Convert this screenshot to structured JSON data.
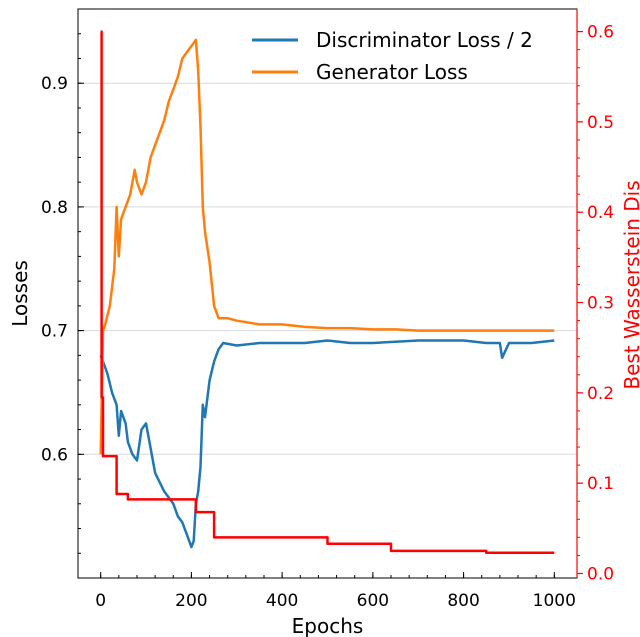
{
  "chart_data": {
    "type": "line",
    "title": "",
    "xlabel": "Epochs",
    "ylabel": "Losses",
    "ylabel_right": "Best Wasserstein Dis",
    "xlim": [
      -50,
      1050
    ],
    "ylim": [
      0.5,
      0.96
    ],
    "ylim_right": [
      -0.005,
      0.625
    ],
    "x_ticks": [
      "0",
      "200",
      "400",
      "600",
      "800",
      "1000"
    ],
    "y_ticks": [
      "0.6",
      "0.7",
      "0.8",
      "0.9"
    ],
    "y_ticks_right": [
      "0.0",
      "0.1",
      "0.2",
      "0.3",
      "0.4",
      "0.5",
      "0.6"
    ],
    "grid": "horizontal",
    "legend_position": "top-right",
    "colors": {
      "discriminator": "#1f77b4",
      "generator": "#ff7f0e",
      "wasserstein": "#ff0000"
    },
    "series": [
      {
        "name": "Discriminator Loss / 2",
        "axis": "left",
        "x": [
          0,
          5,
          15,
          25,
          35,
          40,
          45,
          55,
          60,
          70,
          80,
          90,
          100,
          110,
          120,
          140,
          160,
          170,
          180,
          190,
          200,
          205,
          210,
          215,
          220,
          225,
          230,
          240,
          250,
          260,
          270,
          300,
          350,
          400,
          450,
          500,
          550,
          600,
          650,
          700,
          750,
          800,
          850,
          880,
          885,
          900,
          950,
          1000
        ],
        "y": [
          0.68,
          0.675,
          0.665,
          0.65,
          0.64,
          0.615,
          0.635,
          0.625,
          0.61,
          0.6,
          0.595,
          0.62,
          0.625,
          0.605,
          0.585,
          0.57,
          0.56,
          0.55,
          0.545,
          0.535,
          0.525,
          0.53,
          0.56,
          0.57,
          0.59,
          0.64,
          0.63,
          0.66,
          0.675,
          0.685,
          0.69,
          0.688,
          0.69,
          0.69,
          0.69,
          0.692,
          0.69,
          0.69,
          0.691,
          0.692,
          0.692,
          0.692,
          0.69,
          0.69,
          0.678,
          0.69,
          0.69,
          0.692
        ]
      },
      {
        "name": "Generator Loss",
        "axis": "left",
        "x": [
          0,
          5,
          10,
          20,
          30,
          35,
          40,
          45,
          55,
          65,
          75,
          80,
          90,
          100,
          110,
          120,
          130,
          140,
          150,
          160,
          170,
          180,
          190,
          200,
          210,
          215,
          220,
          225,
          230,
          240,
          250,
          260,
          280,
          300,
          350,
          400,
          450,
          500,
          550,
          600,
          650,
          700,
          750,
          800,
          850,
          900,
          950,
          1000
        ],
        "y": [
          0.6,
          0.7,
          0.705,
          0.72,
          0.75,
          0.8,
          0.76,
          0.79,
          0.8,
          0.81,
          0.83,
          0.82,
          0.81,
          0.82,
          0.84,
          0.85,
          0.86,
          0.87,
          0.885,
          0.895,
          0.905,
          0.92,
          0.925,
          0.93,
          0.935,
          0.91,
          0.865,
          0.8,
          0.78,
          0.755,
          0.72,
          0.71,
          0.71,
          0.708,
          0.705,
          0.705,
          0.703,
          0.702,
          0.702,
          0.701,
          0.701,
          0.7,
          0.7,
          0.7,
          0.7,
          0.7,
          0.7,
          0.7
        ]
      },
      {
        "name": "Best Wasserstein Distance",
        "axis": "right",
        "step": true,
        "x": [
          0,
          2,
          5,
          15,
          35,
          60,
          140,
          210,
          250,
          500,
          640,
          850,
          1000
        ],
        "y": [
          0.6,
          0.195,
          0.13,
          0.13,
          0.088,
          0.082,
          0.082,
          0.068,
          0.04,
          0.033,
          0.025,
          0.023,
          0.023
        ]
      }
    ]
  }
}
